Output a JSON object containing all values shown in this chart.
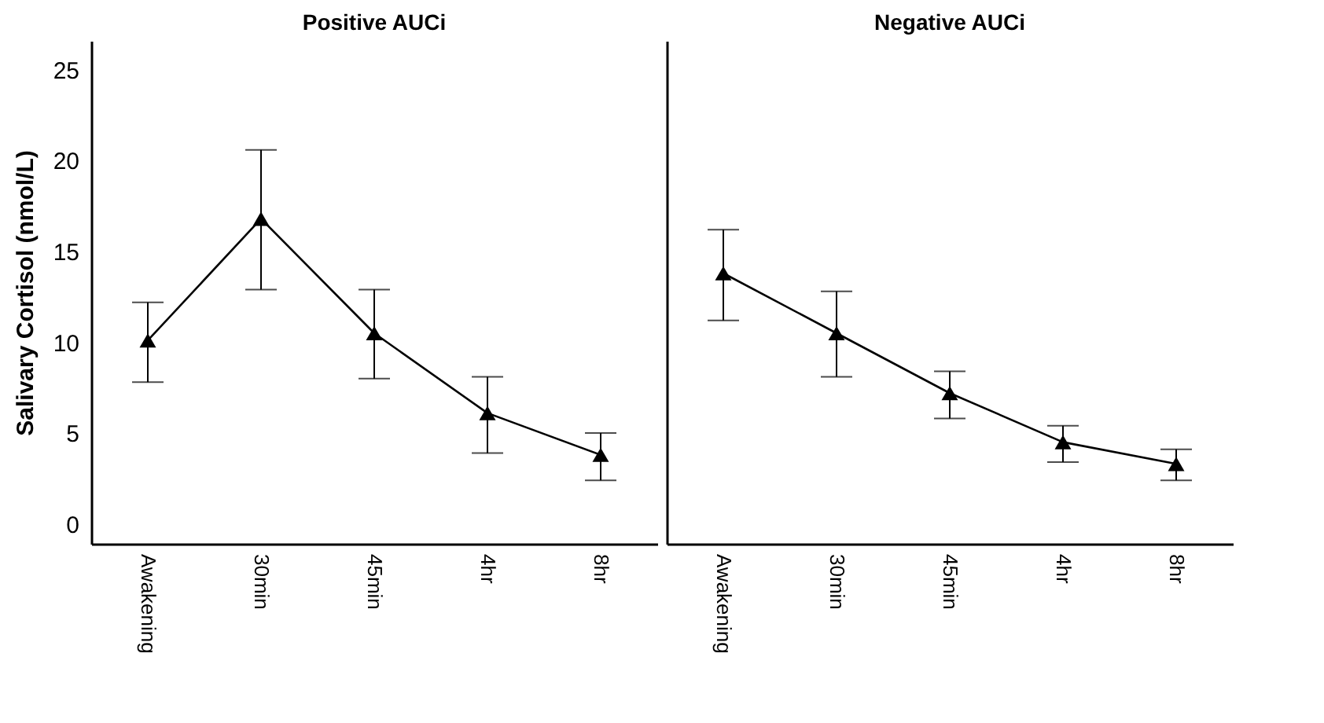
{
  "chart_data": [
    {
      "type": "line",
      "title": "Positive AUCi",
      "ylabel": "Salivary Cortisol (nmol/L)",
      "categories": [
        "Awakening",
        "30min",
        "45min",
        "4hr",
        "8hr"
      ],
      "series": [
        {
          "color": "#000000",
          "values": [
            10.1,
            16.8,
            10.5,
            6.1,
            3.8
          ],
          "errors": [
            [
              7.8,
              12.2
            ],
            [
              12.9,
              20.6
            ],
            [
              8.0,
              12.9
            ],
            [
              3.9,
              8.1
            ],
            [
              2.4,
              5.0
            ]
          ]
        }
      ],
      "ylim": [
        -1.1,
        26.6
      ],
      "yticks": [
        0,
        5,
        10,
        15,
        20,
        25
      ],
      "grid": false,
      "marker": "triangle",
      "line_style": "solid"
    },
    {
      "type": "line",
      "title": "Negative AUCi",
      "categories": [
        "Awakening",
        "30min",
        "45min",
        "4hr",
        "8hr"
      ],
      "series": [
        {
          "color": "#000000",
          "values": [
            13.8,
            10.5,
            7.2,
            4.5,
            3.3
          ],
          "errors": [
            [
              11.2,
              16.2
            ],
            [
              8.1,
              12.8
            ],
            [
              5.8,
              8.4
            ],
            [
              3.4,
              5.4
            ],
            [
              2.4,
              4.1
            ]
          ]
        }
      ],
      "ylim": [
        -1.1,
        26.6
      ],
      "yticks": [
        0,
        5,
        10,
        15,
        20,
        25
      ],
      "tick_labels": "x",
      "grid": false,
      "marker": "triangle",
      "line_style": "solid"
    }
  ]
}
